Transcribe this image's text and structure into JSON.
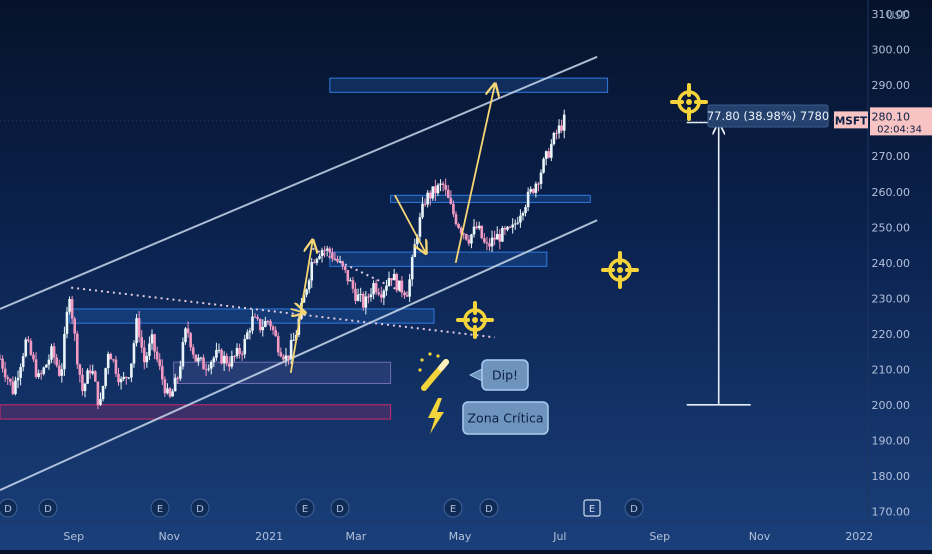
{
  "chart_data": {
    "type": "candlestick",
    "symbol": "MSFT",
    "currency": "USD",
    "last_price": "280.10",
    "countdown": "02:04:34",
    "measure_label": "77.80 (38.98%) 7780",
    "y_axis": {
      "min": 167,
      "max": 314,
      "ticks": [
        "310.00",
        "300.00",
        "290.00",
        "280.00",
        "270.00",
        "260.00",
        "250.00",
        "240.00",
        "230.00",
        "220.00",
        "210.00",
        "200.00",
        "190.00",
        "180.00",
        "170.00"
      ]
    },
    "x_axis": {
      "labels": [
        {
          "label": "Sep",
          "pos": 0.085
        },
        {
          "label": "Nov",
          "pos": 0.195
        },
        {
          "label": "2021",
          "pos": 0.31
        },
        {
          "label": "Mar",
          "pos": 0.41
        },
        {
          "label": "May",
          "pos": 0.53
        },
        {
          "label": "Jul",
          "pos": 0.645
        },
        {
          "label": "Sep",
          "pos": 0.76
        },
        {
          "label": "Nov",
          "pos": 0.875
        },
        {
          "label": "2022",
          "pos": 0.99
        }
      ]
    },
    "price_path": [
      [
        0.0,
        213
      ],
      [
        0.015,
        204
      ],
      [
        0.03,
        218
      ],
      [
        0.045,
        207
      ],
      [
        0.06,
        215
      ],
      [
        0.07,
        208
      ],
      [
        0.08,
        232
      ],
      [
        0.088,
        215
      ],
      [
        0.095,
        204
      ],
      [
        0.105,
        211
      ],
      [
        0.115,
        199
      ],
      [
        0.125,
        216
      ],
      [
        0.14,
        206
      ],
      [
        0.15,
        210
      ],
      [
        0.158,
        224
      ],
      [
        0.166,
        212
      ],
      [
        0.175,
        218
      ],
      [
        0.185,
        209
      ],
      [
        0.195,
        201
      ],
      [
        0.205,
        208
      ],
      [
        0.215,
        222
      ],
      [
        0.225,
        213
      ],
      [
        0.235,
        211
      ],
      [
        0.25,
        214
      ],
      [
        0.265,
        212
      ],
      [
        0.28,
        216
      ],
      [
        0.29,
        224
      ],
      [
        0.3,
        222
      ],
      [
        0.31,
        224
      ],
      [
        0.32,
        217
      ],
      [
        0.33,
        213
      ],
      [
        0.34,
        219
      ],
      [
        0.35,
        230
      ],
      [
        0.36,
        241
      ],
      [
        0.37,
        244
      ],
      [
        0.38,
        243
      ],
      [
        0.39,
        240
      ],
      [
        0.4,
        236
      ],
      [
        0.41,
        231
      ],
      [
        0.42,
        228
      ],
      [
        0.43,
        234
      ],
      [
        0.44,
        232
      ],
      [
        0.45,
        237
      ],
      [
        0.46,
        233
      ],
      [
        0.47,
        232
      ],
      [
        0.48,
        248
      ],
      [
        0.49,
        258
      ],
      [
        0.5,
        260
      ],
      [
        0.51,
        262
      ],
      [
        0.52,
        255
      ],
      [
        0.53,
        250
      ],
      [
        0.54,
        247
      ],
      [
        0.55,
        250
      ],
      [
        0.56,
        244
      ],
      [
        0.57,
        247
      ],
      [
        0.58,
        248
      ],
      [
        0.59,
        249
      ],
      [
        0.6,
        255
      ],
      [
        0.61,
        259
      ],
      [
        0.62,
        264
      ],
      [
        0.63,
        270
      ],
      [
        0.64,
        276
      ],
      [
        0.65,
        280
      ]
    ],
    "drawings": {
      "channel_upper": [
        [
          0.0,
          227
        ],
        [
          0.688,
          298
        ]
      ],
      "channel_lower": [
        [
          0.0,
          176
        ],
        [
          0.688,
          252
        ]
      ],
      "dotted_trend_1": [
        [
          0.082,
          233
        ],
        [
          0.57,
          219
        ]
      ],
      "dotted_trend_2": [
        [
          0.36,
          244
        ],
        [
          0.47,
          231
        ]
      ],
      "zones": [
        {
          "x0": 0.38,
          "x1": 0.7,
          "y0": 288,
          "y1": 292,
          "color": "#2f7be0"
        },
        {
          "x0": 0.45,
          "x1": 0.68,
          "y0": 257,
          "y1": 259,
          "color": "#2f7be0"
        },
        {
          "x0": 0.38,
          "x1": 0.63,
          "y0": 239,
          "y1": 243,
          "color": "#2f7be0"
        },
        {
          "x0": 0.08,
          "x1": 0.5,
          "y0": 223,
          "y1": 227,
          "color": "#2f7be0"
        },
        {
          "x0": 0.2,
          "x1": 0.45,
          "y0": 206,
          "y1": 212,
          "color": "#6d6db0"
        },
        {
          "x0": 0.0,
          "x1": 0.45,
          "y0": 196,
          "y1": 200,
          "color": "#d0286e"
        }
      ],
      "arrows": [
        {
          "from": [
            0.335,
            209
          ],
          "to": [
            0.36,
            246
          ]
        },
        {
          "from": [
            0.335,
            227
          ],
          "to": [
            0.35,
            226
          ]
        },
        {
          "from": [
            0.455,
            259
          ],
          "to": [
            0.49,
            243
          ]
        },
        {
          "from": [
            0.525,
            240
          ],
          "to": [
            0.57,
            290
          ]
        }
      ],
      "range_measure": {
        "x": 0.828,
        "top": 279.5,
        "bottom": 200
      },
      "callouts": [
        {
          "id": "dip",
          "text": "Dip!"
        },
        {
          "id": "critica",
          "text": "Zona Crítica"
        }
      ]
    },
    "colors": {
      "up": "#e9f5f8",
      "down": "#f39ac2",
      "channel": "#c9d8ec",
      "arrow": "#f7d774",
      "target": "#f5d43b",
      "price_label_bg": "#f8c3c3",
      "price_label_text": "#0c1f44"
    }
  }
}
